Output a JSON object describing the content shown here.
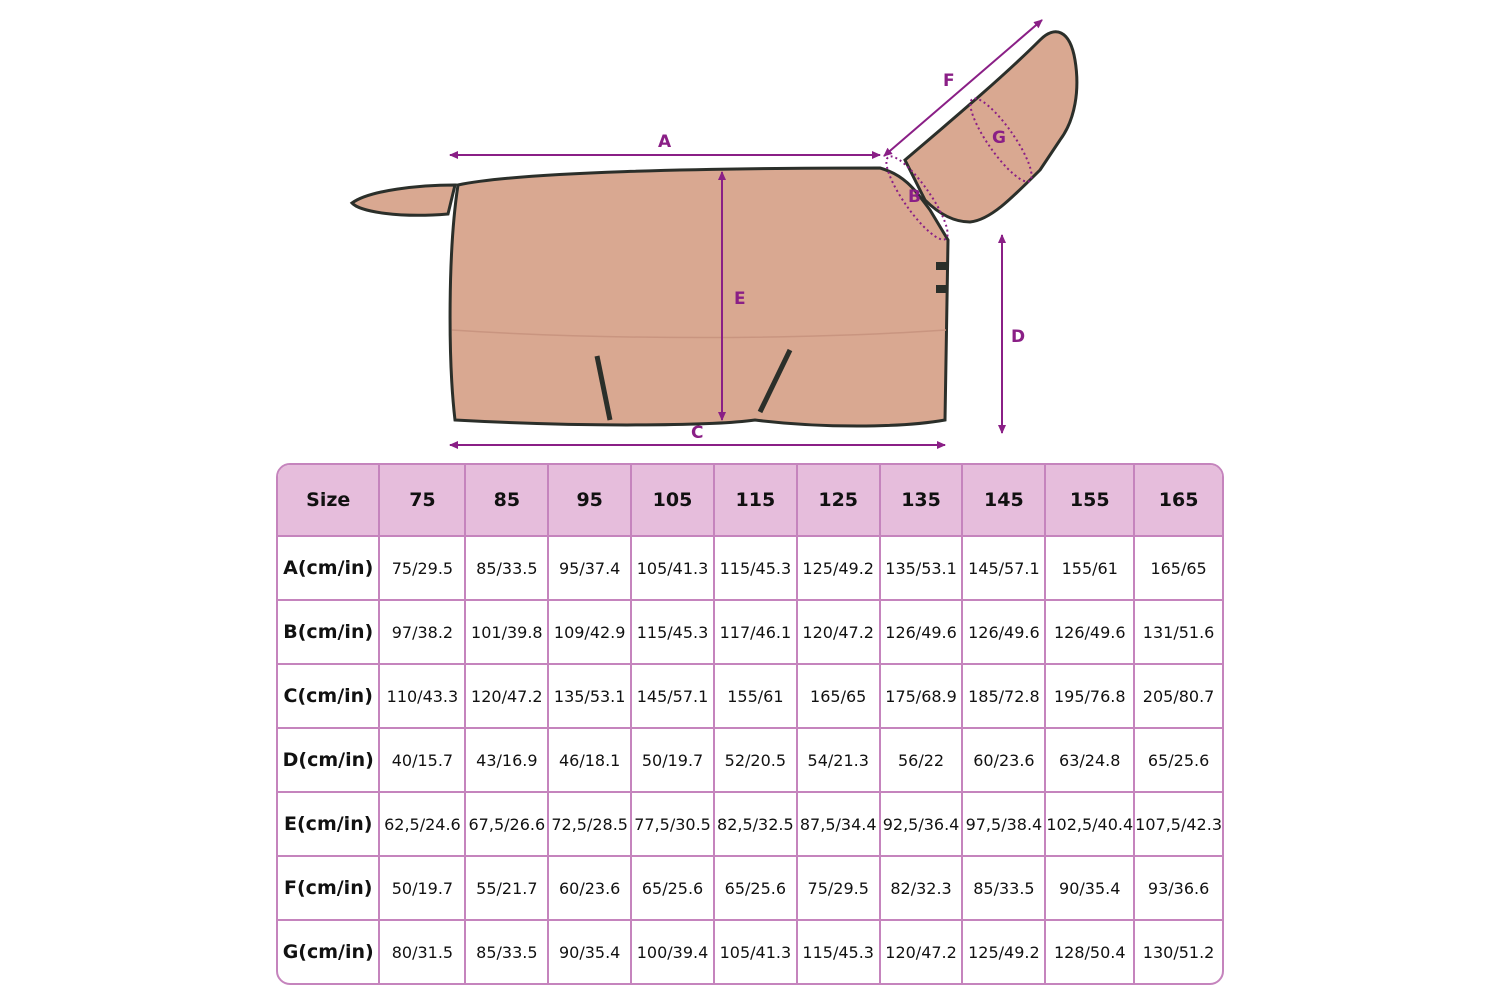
{
  "diagram": {
    "labels": {
      "A": "A",
      "B": "B",
      "C": "C",
      "D": "D",
      "E": "E",
      "F": "F",
      "G": "G"
    },
    "colors": {
      "rug": "#d9a891",
      "trim": "#2b2f2a",
      "arrow": "#8a1f86"
    }
  },
  "table": {
    "colors": {
      "header_bg": "#e6bddc",
      "border": "#c584bd"
    },
    "header": [
      "Size",
      "75",
      "85",
      "95",
      "105",
      "115",
      "125",
      "135",
      "145",
      "155",
      "165"
    ],
    "rows": [
      {
        "label": "A(cm/in)",
        "values": [
          "75/29.5",
          "85/33.5",
          "95/37.4",
          "105/41.3",
          "115/45.3",
          "125/49.2",
          "135/53.1",
          "145/57.1",
          "155/61",
          "165/65"
        ]
      },
      {
        "label": "B(cm/in)",
        "values": [
          "97/38.2",
          "101/39.8",
          "109/42.9",
          "115/45.3",
          "117/46.1",
          "120/47.2",
          "126/49.6",
          "126/49.6",
          "126/49.6",
          "131/51.6"
        ]
      },
      {
        "label": "C(cm/in)",
        "values": [
          "110/43.3",
          "120/47.2",
          "135/53.1",
          "145/57.1",
          "155/61",
          "165/65",
          "175/68.9",
          "185/72.8",
          "195/76.8",
          "205/80.7"
        ]
      },
      {
        "label": "D(cm/in)",
        "values": [
          "40/15.7",
          "43/16.9",
          "46/18.1",
          "50/19.7",
          "52/20.5",
          "54/21.3",
          "56/22",
          "60/23.6",
          "63/24.8",
          "65/25.6"
        ]
      },
      {
        "label": "E(cm/in)",
        "values": [
          "62,5/24.6",
          "67,5/26.6",
          "72,5/28.5",
          "77,5/30.5",
          "82,5/32.5",
          "87,5/34.4",
          "92,5/36.4",
          "97,5/38.4",
          "102,5/40.4",
          "107,5/42.3"
        ]
      },
      {
        "label": "F(cm/in)",
        "values": [
          "50/19.7",
          "55/21.7",
          "60/23.6",
          "65/25.6",
          "65/25.6",
          "75/29.5",
          "82/32.3",
          "85/33.5",
          "90/35.4",
          "93/36.6"
        ]
      },
      {
        "label": "G(cm/in)",
        "values": [
          "80/31.5",
          "85/33.5",
          "90/35.4",
          "100/39.4",
          "105/41.3",
          "115/45.3",
          "120/47.2",
          "125/49.2",
          "128/50.4",
          "130/51.2"
        ]
      }
    ]
  }
}
